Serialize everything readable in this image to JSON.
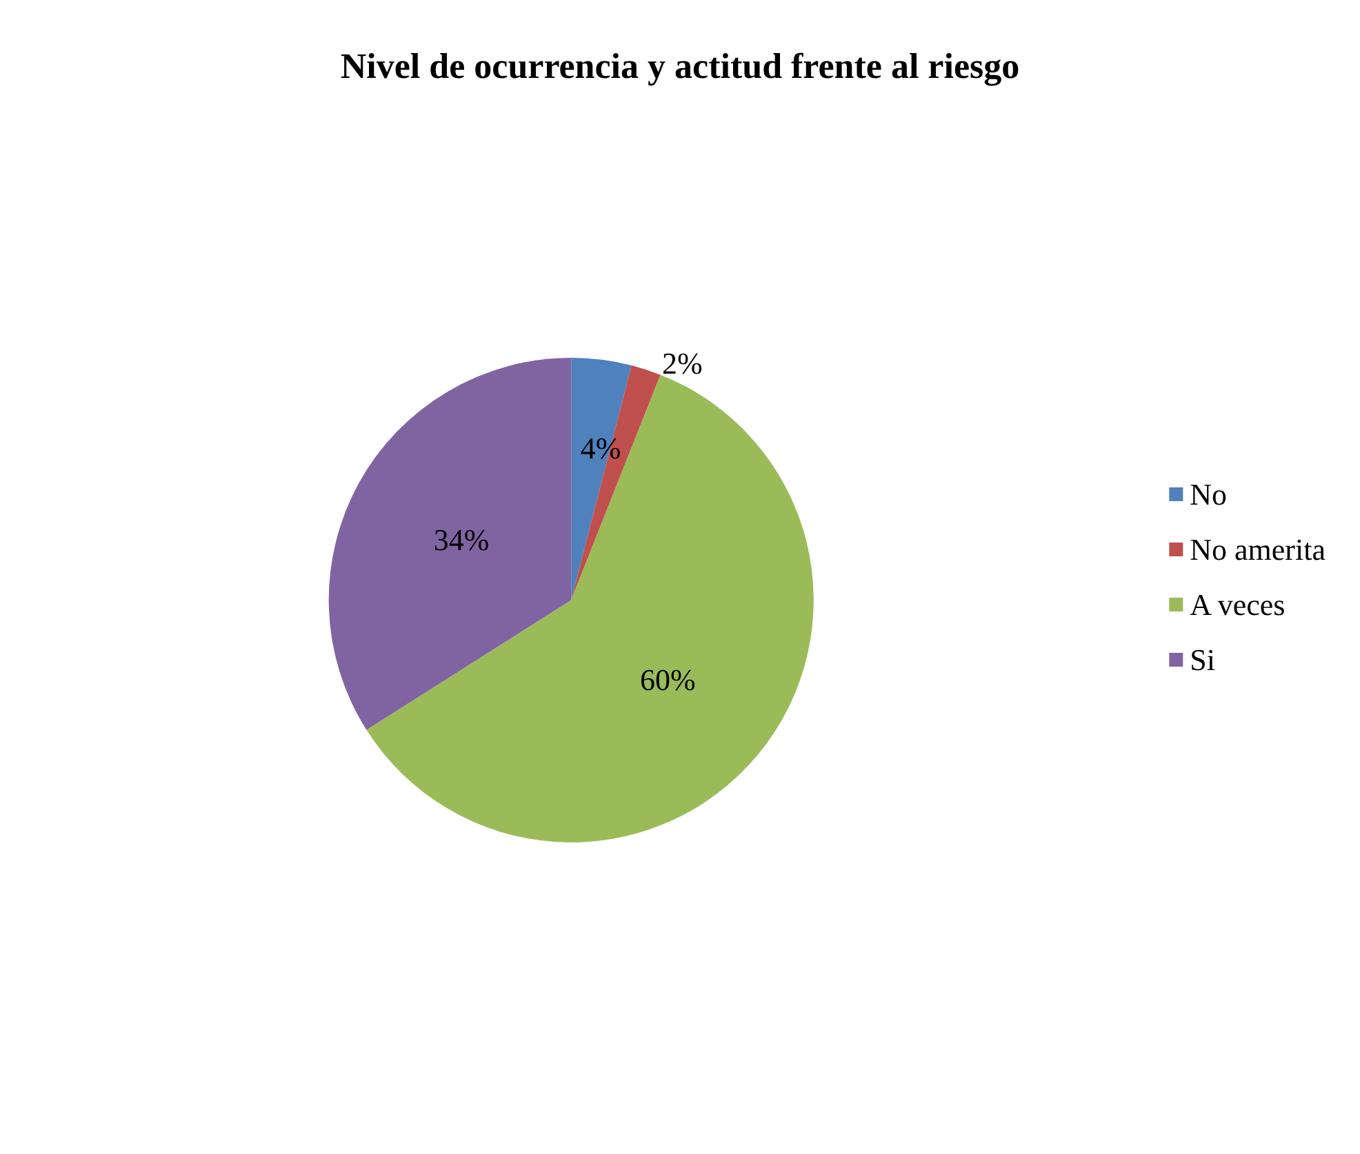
{
  "chart_data": {
    "type": "pie",
    "title": "Nivel de ocurrencia y actitud frente al riesgo",
    "categories": [
      "No",
      "No amerita",
      "A veces",
      "Si"
    ],
    "values": [
      4,
      2,
      60,
      34
    ],
    "colors": [
      "#4f81bd",
      "#c0504d",
      "#9bbb59",
      "#8064a2"
    ],
    "value_labels": [
      "4%",
      "2%",
      "60%",
      "34%"
    ],
    "legend": "right"
  }
}
